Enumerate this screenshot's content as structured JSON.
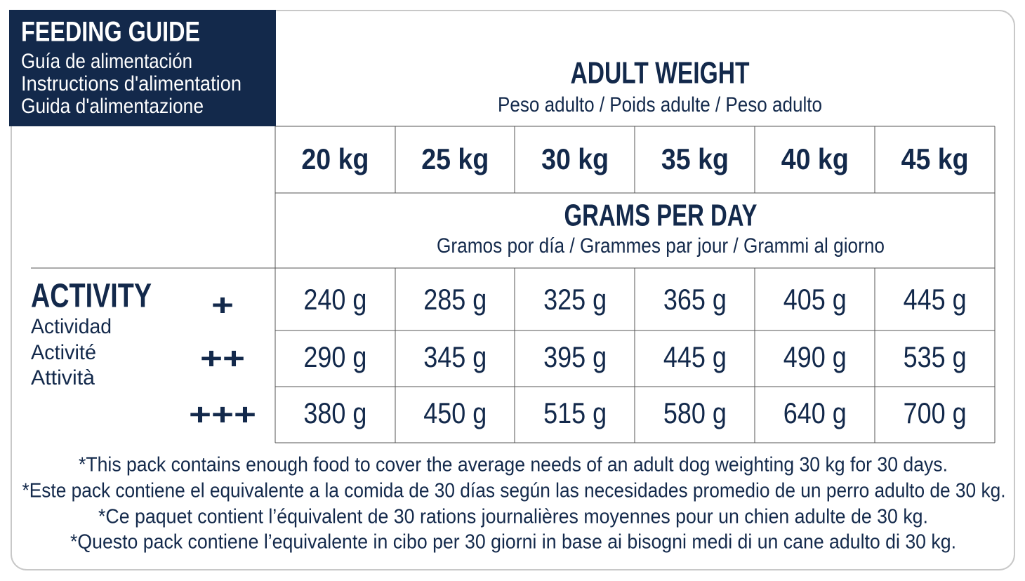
{
  "header": {
    "title": "FEEDING GUIDE",
    "subtitles": [
      "Guía de alimentación",
      "Instructions d'alimentation",
      "Guida d'alimentazione"
    ]
  },
  "weight_header": {
    "title": "ADULT WEIGHT",
    "subtitle": "Peso adulto / Poids adulte / Peso adulto"
  },
  "weights": [
    "20 kg",
    "25 kg",
    "30 kg",
    "35 kg",
    "40 kg",
    "45 kg"
  ],
  "amount_header": {
    "title": "GRAMS PER DAY",
    "subtitle": "Gramos por día / Grammes par jour / Grammi al giorno"
  },
  "activity": {
    "title": "ACTIVITY",
    "translations": [
      "Actividad",
      "Activité",
      "Attività"
    ]
  },
  "rows": [
    {
      "level": "+",
      "values": [
        "240 g",
        "285 g",
        "325 g",
        "365 g",
        "405 g",
        "445 g"
      ]
    },
    {
      "level": "++",
      "values": [
        "290 g",
        "345 g",
        "395 g",
        "445 g",
        "490 g",
        "535 g"
      ]
    },
    {
      "level": "+++",
      "values": [
        "380 g",
        "450 g",
        "515 g",
        "580 g",
        "640 g",
        "700 g"
      ]
    }
  ],
  "notes": [
    "*This pack contains enough food to cover the average needs of an adult dog weighting 30 kg for 30 days.",
    "*Este pack contiene el equivalente a la comida de 30 días según las necesidades promedio de un perro adulto de 30 kg.",
    "*Ce paquet contient l’équivalent de 30 rations journalières moyennes pour un chien adulte de 30 kg.",
    "*Questo pack contiene l’equivalente in cibo per 30 giorni in base ai bisogni medi di un cane adulto di 30 kg."
  ]
}
